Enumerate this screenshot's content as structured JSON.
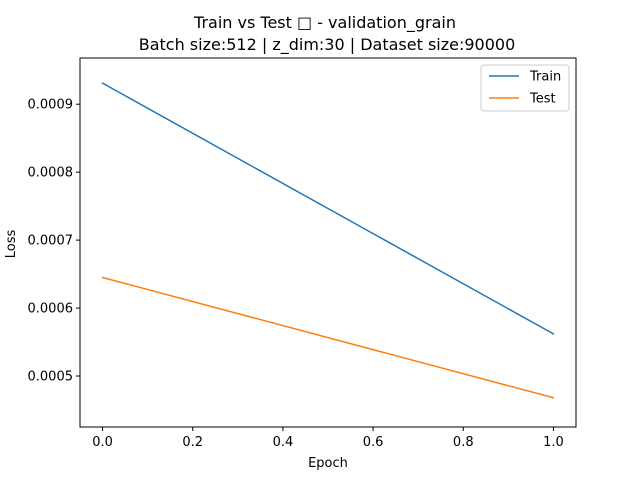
{
  "chart_data": {
    "type": "line",
    "title": "Train vs Test □ - validation_grain",
    "subtitle": "Batch size:512 | z_dim:30 | Dataset size:90000",
    "xlabel": "Epoch",
    "ylabel": "Loss",
    "xlim": [
      -0.05,
      1.05
    ],
    "ylim": [
      0.000425,
      0.000968
    ],
    "xticks": [
      0.0,
      0.2,
      0.4,
      0.6,
      0.8,
      1.0
    ],
    "xtick_labels": [
      "0.0",
      "0.2",
      "0.4",
      "0.6",
      "0.8",
      "1.0"
    ],
    "yticks": [
      0.0005,
      0.0006,
      0.0007,
      0.0008,
      0.0009
    ],
    "ytick_labels": [
      "0.0005",
      "0.0006",
      "0.0007",
      "0.0008",
      "0.0009"
    ],
    "grid": false,
    "legend_position": "top-right",
    "series": [
      {
        "name": "Train",
        "color": "#1f77b4",
        "x": [
          0,
          1
        ],
        "values": [
          0.000931,
          0.000562
        ]
      },
      {
        "name": "Test",
        "color": "#ff7f0e",
        "x": [
          0,
          1
        ],
        "values": [
          0.000645,
          0.000468
        ]
      }
    ]
  }
}
